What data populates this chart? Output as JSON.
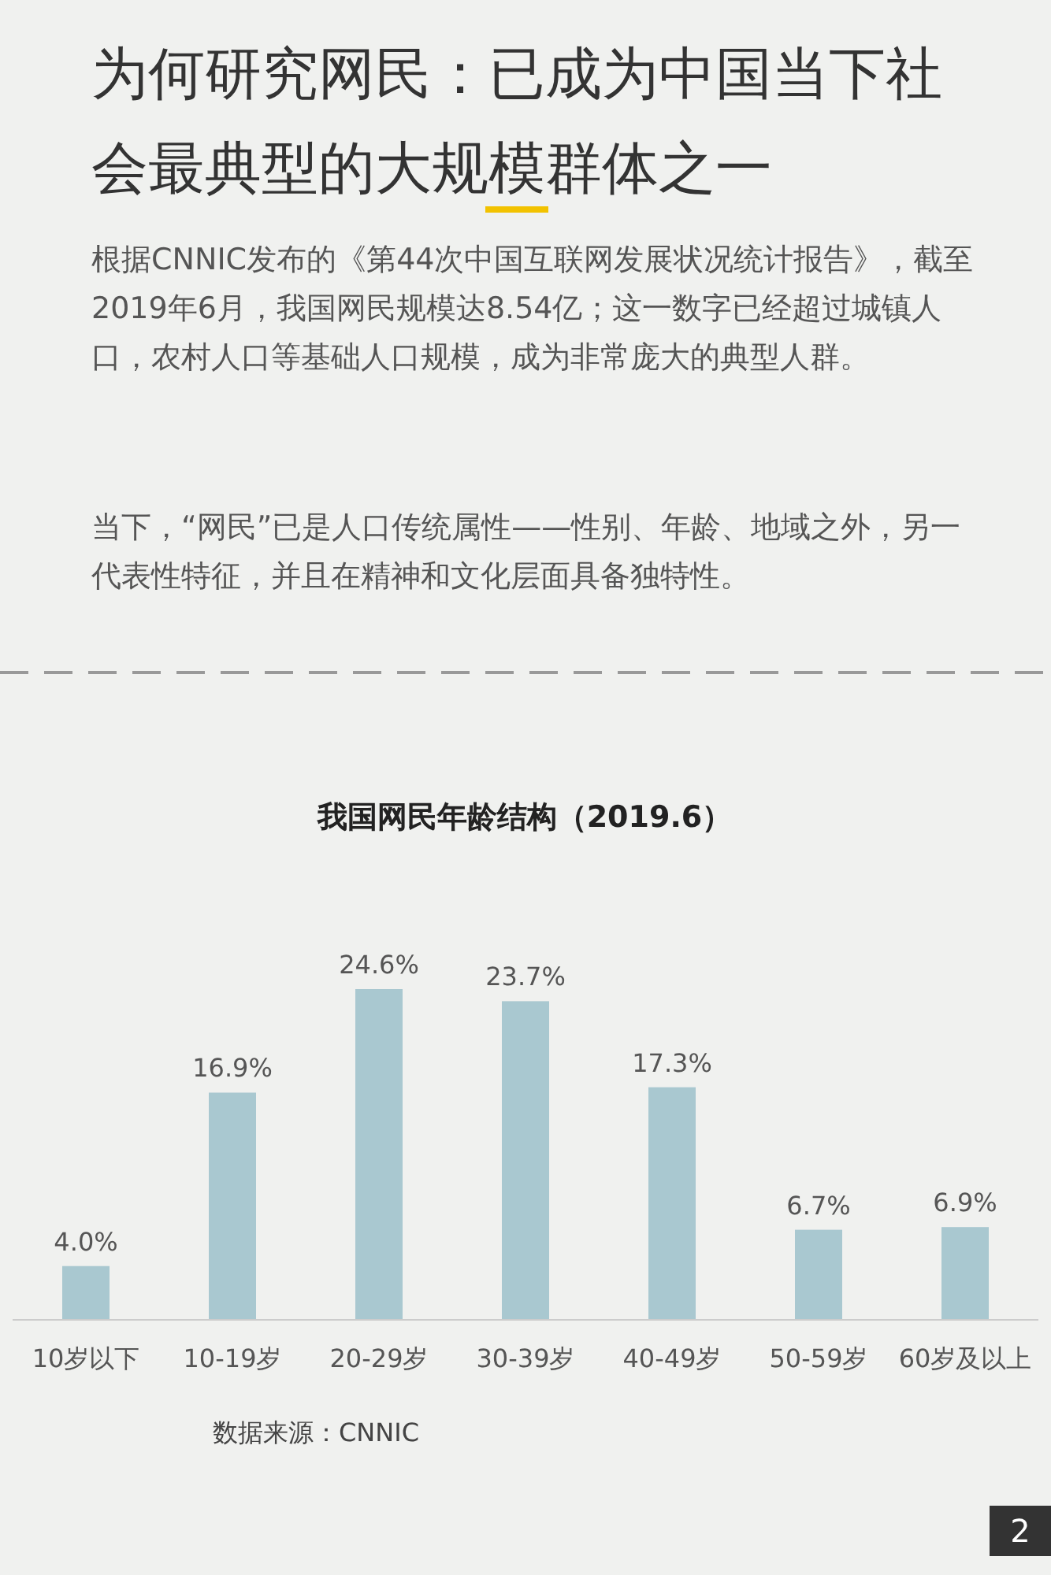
{
  "chart_data": {
    "type": "bar",
    "title": "我国网民年龄结构（2019.6）",
    "categories": [
      "10岁以下",
      "10-19岁",
      "20-29岁",
      "30-39岁",
      "40-49岁",
      "50-59岁",
      "60岁及以上"
    ],
    "values": [
      4.0,
      16.9,
      24.6,
      23.7,
      17.3,
      6.7,
      6.9
    ],
    "value_labels": [
      "4.0%",
      "16.9%",
      "24.6%",
      "23.7%",
      "17.3%",
      "6.7%",
      "6.9%"
    ],
    "color": "#a9c8d0",
    "annotations": [
      "为何研究网民：已成为中国当下社会最典型的大规模群体之一",
      "根据CNNIC发布的《第44次中国互联网发展状况统计报告》，截至2019年6月，我国网民规模达8.54亿；这一数字已经超过城镇人口，农村人口等基础人口规模，成为非常庞大的典型人群。",
      "当下，“网民”已是人口传统属性——性别、年龄、地域之外，另一代表性特征，并且在精神和文化层面具备独特性。",
      "数据来源：CNNIC",
      "2"
    ]
  }
}
